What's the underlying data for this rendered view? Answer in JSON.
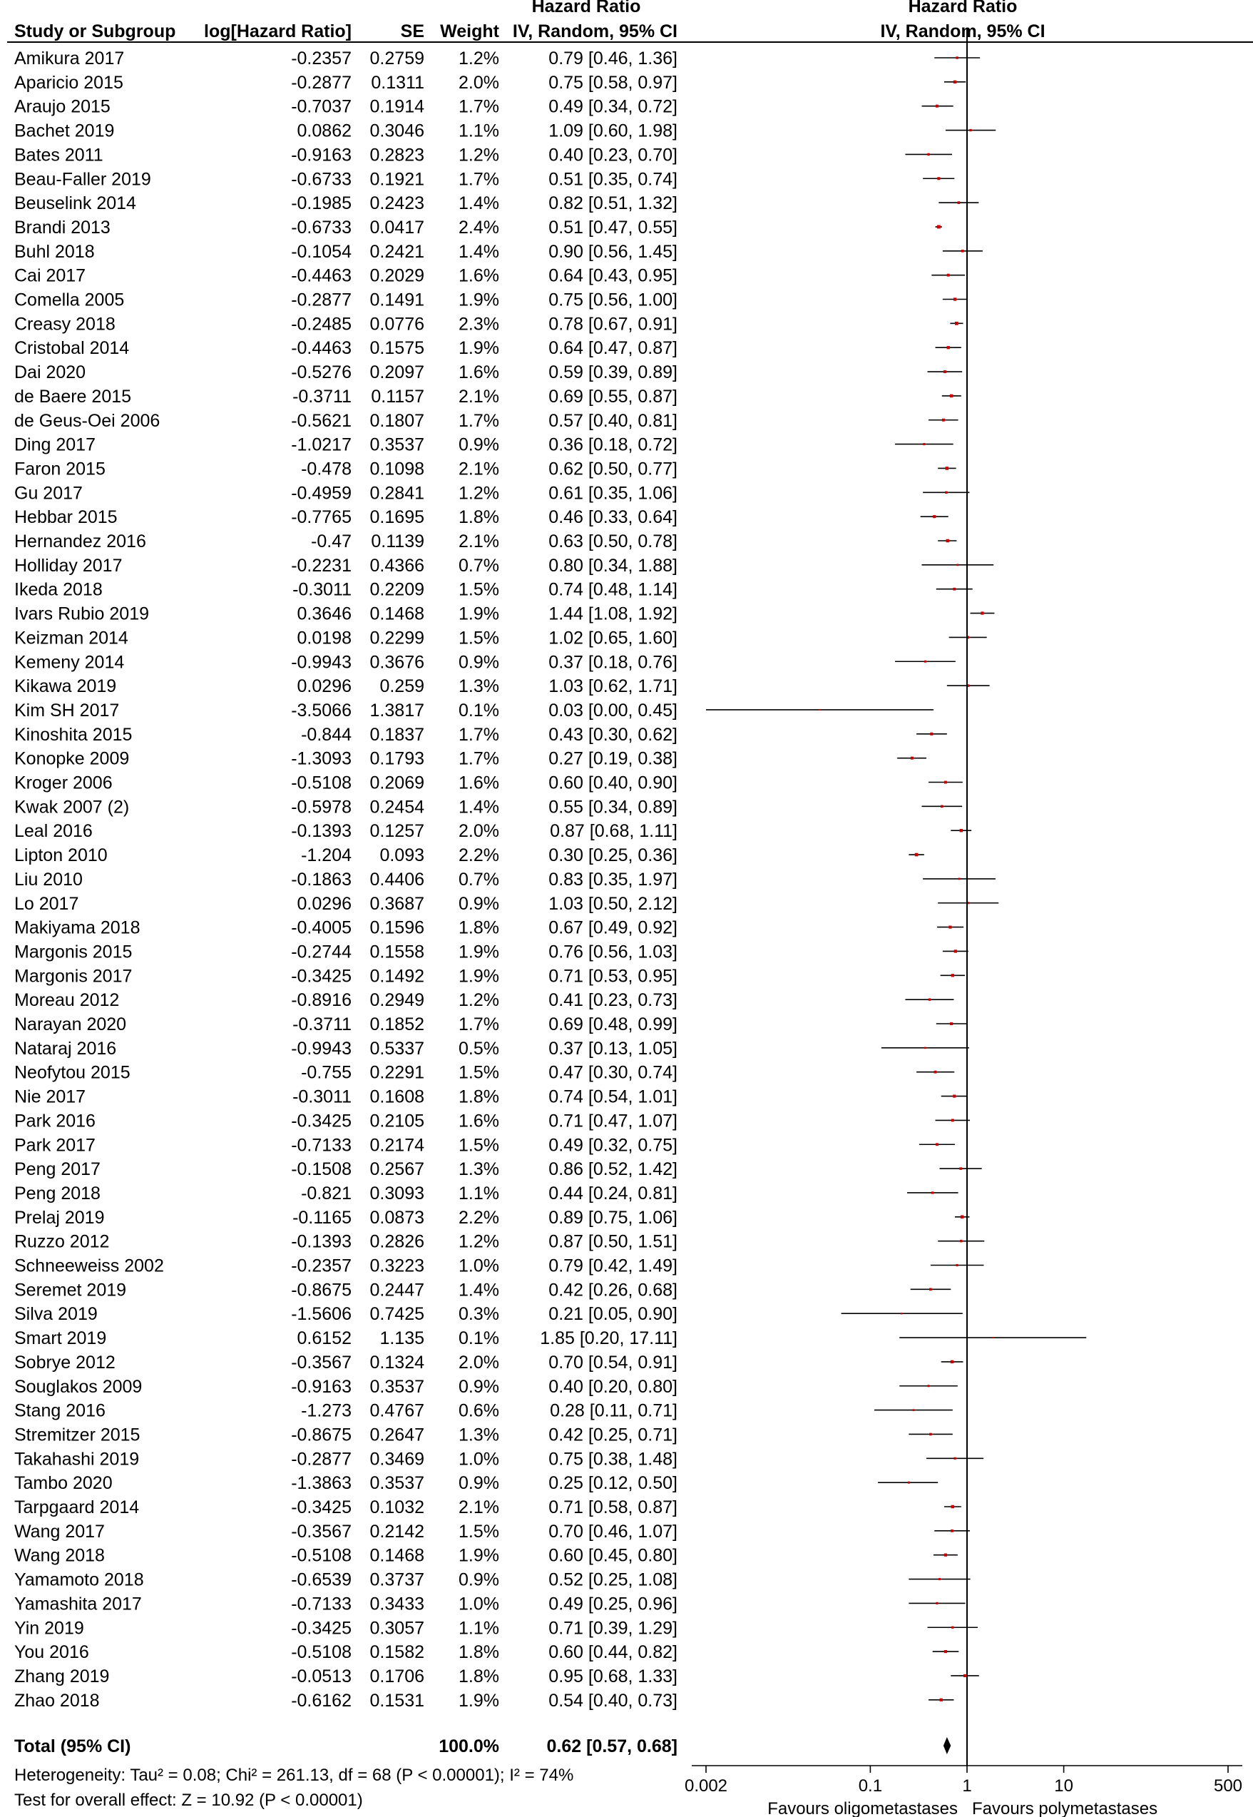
{
  "chart_data": {
    "type": "forest",
    "headers": {
      "study": "Study or Subgroup",
      "loghr": "log[Hazard Ratio]",
      "se": "SE",
      "weight": "Weight",
      "ci_title": "Hazard Ratio",
      "ci_method": "IV, Random, 95% CI",
      "plot_title": "Hazard Ratio",
      "plot_method": "IV, Random, 95% CI"
    },
    "studies": [
      {
        "name": "Amikura 2017",
        "loghr": "-0.2357",
        "se": "0.2759",
        "weight": "1.2%",
        "ci_text": "0.79 [0.46, 1.36]",
        "hr": 0.79,
        "lo": 0.46,
        "hi": 1.36
      },
      {
        "name": "Aparicio 2015",
        "loghr": "-0.2877",
        "se": "0.1311",
        "weight": "2.0%",
        "ci_text": "0.75 [0.58, 0.97]",
        "hr": 0.75,
        "lo": 0.58,
        "hi": 0.97
      },
      {
        "name": "Araujo 2015",
        "loghr": "-0.7037",
        "se": "0.1914",
        "weight": "1.7%",
        "ci_text": "0.49 [0.34, 0.72]",
        "hr": 0.49,
        "lo": 0.34,
        "hi": 0.72
      },
      {
        "name": "Bachet 2019",
        "loghr": "0.0862",
        "se": "0.3046",
        "weight": "1.1%",
        "ci_text": "1.09 [0.60, 1.98]",
        "hr": 1.09,
        "lo": 0.6,
        "hi": 1.98
      },
      {
        "name": "Bates 2011",
        "loghr": "-0.9163",
        "se": "0.2823",
        "weight": "1.2%",
        "ci_text": "0.40 [0.23, 0.70]",
        "hr": 0.4,
        "lo": 0.23,
        "hi": 0.7
      },
      {
        "name": "Beau-Faller 2019",
        "loghr": "-0.6733",
        "se": "0.1921",
        "weight": "1.7%",
        "ci_text": "0.51 [0.35, 0.74]",
        "hr": 0.51,
        "lo": 0.35,
        "hi": 0.74
      },
      {
        "name": "Beuselink 2014",
        "loghr": "-0.1985",
        "se": "0.2423",
        "weight": "1.4%",
        "ci_text": "0.82 [0.51, 1.32]",
        "hr": 0.82,
        "lo": 0.51,
        "hi": 1.32
      },
      {
        "name": "Brandi 2013",
        "loghr": "-0.6733",
        "se": "0.0417",
        "weight": "2.4%",
        "ci_text": "0.51 [0.47, 0.55]",
        "hr": 0.51,
        "lo": 0.47,
        "hi": 0.55
      },
      {
        "name": "Buhl 2018",
        "loghr": "-0.1054",
        "se": "0.2421",
        "weight": "1.4%",
        "ci_text": "0.90 [0.56, 1.45]",
        "hr": 0.9,
        "lo": 0.56,
        "hi": 1.45
      },
      {
        "name": "Cai 2017",
        "loghr": "-0.4463",
        "se": "0.2029",
        "weight": "1.6%",
        "ci_text": "0.64 [0.43, 0.95]",
        "hr": 0.64,
        "lo": 0.43,
        "hi": 0.95
      },
      {
        "name": "Comella 2005",
        "loghr": "-0.2877",
        "se": "0.1491",
        "weight": "1.9%",
        "ci_text": "0.75 [0.56, 1.00]",
        "hr": 0.75,
        "lo": 0.56,
        "hi": 1.0
      },
      {
        "name": "Creasy 2018",
        "loghr": "-0.2485",
        "se": "0.0776",
        "weight": "2.3%",
        "ci_text": "0.78 [0.67, 0.91]",
        "hr": 0.78,
        "lo": 0.67,
        "hi": 0.91
      },
      {
        "name": "Cristobal 2014",
        "loghr": "-0.4463",
        "se": "0.1575",
        "weight": "1.9%",
        "ci_text": "0.64 [0.47, 0.87]",
        "hr": 0.64,
        "lo": 0.47,
        "hi": 0.87
      },
      {
        "name": "Dai 2020",
        "loghr": "-0.5276",
        "se": "0.2097",
        "weight": "1.6%",
        "ci_text": "0.59 [0.39, 0.89]",
        "hr": 0.59,
        "lo": 0.39,
        "hi": 0.89
      },
      {
        "name": "de Baere 2015",
        "loghr": "-0.3711",
        "se": "0.1157",
        "weight": "2.1%",
        "ci_text": "0.69 [0.55, 0.87]",
        "hr": 0.69,
        "lo": 0.55,
        "hi": 0.87
      },
      {
        "name": "de Geus-Oei 2006",
        "loghr": "-0.5621",
        "se": "0.1807",
        "weight": "1.7%",
        "ci_text": "0.57 [0.40, 0.81]",
        "hr": 0.57,
        "lo": 0.4,
        "hi": 0.81
      },
      {
        "name": "Ding 2017",
        "loghr": "-1.0217",
        "se": "0.3537",
        "weight": "0.9%",
        "ci_text": "0.36 [0.18, 0.72]",
        "hr": 0.36,
        "lo": 0.18,
        "hi": 0.72
      },
      {
        "name": "Faron 2015",
        "loghr": "-0.478",
        "se": "0.1098",
        "weight": "2.1%",
        "ci_text": "0.62 [0.50, 0.77]",
        "hr": 0.62,
        "lo": 0.5,
        "hi": 0.77
      },
      {
        "name": "Gu 2017",
        "loghr": "-0.4959",
        "se": "0.2841",
        "weight": "1.2%",
        "ci_text": "0.61 [0.35, 1.06]",
        "hr": 0.61,
        "lo": 0.35,
        "hi": 1.06
      },
      {
        "name": "Hebbar 2015",
        "loghr": "-0.7765",
        "se": "0.1695",
        "weight": "1.8%",
        "ci_text": "0.46 [0.33, 0.64]",
        "hr": 0.46,
        "lo": 0.33,
        "hi": 0.64
      },
      {
        "name": "Hernandez 2016",
        "loghr": "-0.47",
        "se": "0.1139",
        "weight": "2.1%",
        "ci_text": "0.63 [0.50, 0.78]",
        "hr": 0.63,
        "lo": 0.5,
        "hi": 0.78
      },
      {
        "name": "Holliday 2017",
        "loghr": "-0.2231",
        "se": "0.4366",
        "weight": "0.7%",
        "ci_text": "0.80 [0.34, 1.88]",
        "hr": 0.8,
        "lo": 0.34,
        "hi": 1.88
      },
      {
        "name": "Ikeda 2018",
        "loghr": "-0.3011",
        "se": "0.2209",
        "weight": "1.5%",
        "ci_text": "0.74 [0.48, 1.14]",
        "hr": 0.74,
        "lo": 0.48,
        "hi": 1.14
      },
      {
        "name": "Ivars Rubio 2019",
        "loghr": "0.3646",
        "se": "0.1468",
        "weight": "1.9%",
        "ci_text": "1.44 [1.08, 1.92]",
        "hr": 1.44,
        "lo": 1.08,
        "hi": 1.92
      },
      {
        "name": "Keizman 2014",
        "loghr": "0.0198",
        "se": "0.2299",
        "weight": "1.5%",
        "ci_text": "1.02 [0.65, 1.60]",
        "hr": 1.02,
        "lo": 0.65,
        "hi": 1.6
      },
      {
        "name": "Kemeny 2014",
        "loghr": "-0.9943",
        "se": "0.3676",
        "weight": "0.9%",
        "ci_text": "0.37 [0.18, 0.76]",
        "hr": 0.37,
        "lo": 0.18,
        "hi": 0.76
      },
      {
        "name": "Kikawa 2019",
        "loghr": "0.0296",
        "se": "0.259",
        "weight": "1.3%",
        "ci_text": "1.03 [0.62, 1.71]",
        "hr": 1.03,
        "lo": 0.62,
        "hi": 1.71
      },
      {
        "name": "Kim SH 2017",
        "loghr": "-3.5066",
        "se": "1.3817",
        "weight": "0.1%",
        "ci_text": "0.03 [0.00, 0.45]",
        "hr": 0.03,
        "lo": 0.002,
        "hi": 0.45
      },
      {
        "name": "Kinoshita 2015",
        "loghr": "-0.844",
        "se": "0.1837",
        "weight": "1.7%",
        "ci_text": "0.43 [0.30, 0.62]",
        "hr": 0.43,
        "lo": 0.3,
        "hi": 0.62
      },
      {
        "name": "Konopke 2009",
        "loghr": "-1.3093",
        "se": "0.1793",
        "weight": "1.7%",
        "ci_text": "0.27 [0.19, 0.38]",
        "hr": 0.27,
        "lo": 0.19,
        "hi": 0.38
      },
      {
        "name": "Kroger 2006",
        "loghr": "-0.5108",
        "se": "0.2069",
        "weight": "1.6%",
        "ci_text": "0.60 [0.40, 0.90]",
        "hr": 0.6,
        "lo": 0.4,
        "hi": 0.9
      },
      {
        "name": "Kwak 2007 (2)",
        "loghr": "-0.5978",
        "se": "0.2454",
        "weight": "1.4%",
        "ci_text": "0.55 [0.34, 0.89]",
        "hr": 0.55,
        "lo": 0.34,
        "hi": 0.89
      },
      {
        "name": "Leal 2016",
        "loghr": "-0.1393",
        "se": "0.1257",
        "weight": "2.0%",
        "ci_text": "0.87 [0.68, 1.11]",
        "hr": 0.87,
        "lo": 0.68,
        "hi": 1.11
      },
      {
        "name": "Lipton 2010",
        "loghr": "-1.204",
        "se": "0.093",
        "weight": "2.2%",
        "ci_text": "0.30 [0.25, 0.36]",
        "hr": 0.3,
        "lo": 0.25,
        "hi": 0.36
      },
      {
        "name": "Liu 2010",
        "loghr": "-0.1863",
        "se": "0.4406",
        "weight": "0.7%",
        "ci_text": "0.83 [0.35, 1.97]",
        "hr": 0.83,
        "lo": 0.35,
        "hi": 1.97
      },
      {
        "name": "Lo 2017",
        "loghr": "0.0296",
        "se": "0.3687",
        "weight": "0.9%",
        "ci_text": "1.03 [0.50, 2.12]",
        "hr": 1.03,
        "lo": 0.5,
        "hi": 2.12
      },
      {
        "name": "Makiyama 2018",
        "loghr": "-0.4005",
        "se": "0.1596",
        "weight": "1.8%",
        "ci_text": "0.67 [0.49, 0.92]",
        "hr": 0.67,
        "lo": 0.49,
        "hi": 0.92
      },
      {
        "name": "Margonis 2015",
        "loghr": "-0.2744",
        "se": "0.1558",
        "weight": "1.9%",
        "ci_text": "0.76 [0.56, 1.03]",
        "hr": 0.76,
        "lo": 0.56,
        "hi": 1.03
      },
      {
        "name": "Margonis 2017",
        "loghr": "-0.3425",
        "se": "0.1492",
        "weight": "1.9%",
        "ci_text": "0.71 [0.53, 0.95]",
        "hr": 0.71,
        "lo": 0.53,
        "hi": 0.95
      },
      {
        "name": "Moreau 2012",
        "loghr": "-0.8916",
        "se": "0.2949",
        "weight": "1.2%",
        "ci_text": "0.41 [0.23, 0.73]",
        "hr": 0.41,
        "lo": 0.23,
        "hi": 0.73
      },
      {
        "name": "Narayan 2020",
        "loghr": "-0.3711",
        "se": "0.1852",
        "weight": "1.7%",
        "ci_text": "0.69 [0.48, 0.99]",
        "hr": 0.69,
        "lo": 0.48,
        "hi": 0.99
      },
      {
        "name": "Nataraj 2016",
        "loghr": "-0.9943",
        "se": "0.5337",
        "weight": "0.5%",
        "ci_text": "0.37 [0.13, 1.05]",
        "hr": 0.37,
        "lo": 0.13,
        "hi": 1.05
      },
      {
        "name": "Neofytou 2015",
        "loghr": "-0.755",
        "se": "0.2291",
        "weight": "1.5%",
        "ci_text": "0.47 [0.30, 0.74]",
        "hr": 0.47,
        "lo": 0.3,
        "hi": 0.74
      },
      {
        "name": "Nie 2017",
        "loghr": "-0.3011",
        "se": "0.1608",
        "weight": "1.8%",
        "ci_text": "0.74 [0.54, 1.01]",
        "hr": 0.74,
        "lo": 0.54,
        "hi": 1.01
      },
      {
        "name": "Park 2016",
        "loghr": "-0.3425",
        "se": "0.2105",
        "weight": "1.6%",
        "ci_text": "0.71 [0.47, 1.07]",
        "hr": 0.71,
        "lo": 0.47,
        "hi": 1.07
      },
      {
        "name": "Park 2017",
        "loghr": "-0.7133",
        "se": "0.2174",
        "weight": "1.5%",
        "ci_text": "0.49 [0.32, 0.75]",
        "hr": 0.49,
        "lo": 0.32,
        "hi": 0.75
      },
      {
        "name": "Peng 2017",
        "loghr": "-0.1508",
        "se": "0.2567",
        "weight": "1.3%",
        "ci_text": "0.86 [0.52, 1.42]",
        "hr": 0.86,
        "lo": 0.52,
        "hi": 1.42
      },
      {
        "name": "Peng 2018",
        "loghr": "-0.821",
        "se": "0.3093",
        "weight": "1.1%",
        "ci_text": "0.44 [0.24, 0.81]",
        "hr": 0.44,
        "lo": 0.24,
        "hi": 0.81
      },
      {
        "name": "Prelaj 2019",
        "loghr": "-0.1165",
        "se": "0.0873",
        "weight": "2.2%",
        "ci_text": "0.89 [0.75, 1.06]",
        "hr": 0.89,
        "lo": 0.75,
        "hi": 1.06
      },
      {
        "name": "Ruzzo 2012",
        "loghr": "-0.1393",
        "se": "0.2826",
        "weight": "1.2%",
        "ci_text": "0.87 [0.50, 1.51]",
        "hr": 0.87,
        "lo": 0.5,
        "hi": 1.51
      },
      {
        "name": "Schneeweiss 2002",
        "loghr": "-0.2357",
        "se": "0.3223",
        "weight": "1.0%",
        "ci_text": "0.79 [0.42, 1.49]",
        "hr": 0.79,
        "lo": 0.42,
        "hi": 1.49
      },
      {
        "name": "Seremet 2019",
        "loghr": "-0.8675",
        "se": "0.2447",
        "weight": "1.4%",
        "ci_text": "0.42 [0.26, 0.68]",
        "hr": 0.42,
        "lo": 0.26,
        "hi": 0.68
      },
      {
        "name": "Silva 2019",
        "loghr": "-1.5606",
        "se": "0.7425",
        "weight": "0.3%",
        "ci_text": "0.21 [0.05, 0.90]",
        "hr": 0.21,
        "lo": 0.05,
        "hi": 0.9
      },
      {
        "name": "Smart 2019",
        "loghr": "0.6152",
        "se": "1.135",
        "weight": "0.1%",
        "ci_text": "1.85 [0.20, 17.11]",
        "hr": 1.85,
        "lo": 0.2,
        "hi": 17.11
      },
      {
        "name": "Sobrye 2012",
        "loghr": "-0.3567",
        "se": "0.1324",
        "weight": "2.0%",
        "ci_text": "0.70 [0.54, 0.91]",
        "hr": 0.7,
        "lo": 0.54,
        "hi": 0.91
      },
      {
        "name": "Souglakos 2009",
        "loghr": "-0.9163",
        "se": "0.3537",
        "weight": "0.9%",
        "ci_text": "0.40 [0.20, 0.80]",
        "hr": 0.4,
        "lo": 0.2,
        "hi": 0.8
      },
      {
        "name": "Stang 2016",
        "loghr": "-1.273",
        "se": "0.4767",
        "weight": "0.6%",
        "ci_text": "0.28 [0.11, 0.71]",
        "hr": 0.28,
        "lo": 0.11,
        "hi": 0.71
      },
      {
        "name": "Stremitzer 2015",
        "loghr": "-0.8675",
        "se": "0.2647",
        "weight": "1.3%",
        "ci_text": "0.42 [0.25, 0.71]",
        "hr": 0.42,
        "lo": 0.25,
        "hi": 0.71
      },
      {
        "name": "Takahashi 2019",
        "loghr": "-0.2877",
        "se": "0.3469",
        "weight": "1.0%",
        "ci_text": "0.75 [0.38, 1.48]",
        "hr": 0.75,
        "lo": 0.38,
        "hi": 1.48
      },
      {
        "name": "Tambo 2020",
        "loghr": "-1.3863",
        "se": "0.3537",
        "weight": "0.9%",
        "ci_text": "0.25 [0.12, 0.50]",
        "hr": 0.25,
        "lo": 0.12,
        "hi": 0.5
      },
      {
        "name": "Tarpgaard 2014",
        "loghr": "-0.3425",
        "se": "0.1032",
        "weight": "2.1%",
        "ci_text": "0.71 [0.58, 0.87]",
        "hr": 0.71,
        "lo": 0.58,
        "hi": 0.87
      },
      {
        "name": "Wang 2017",
        "loghr": "-0.3567",
        "se": "0.2142",
        "weight": "1.5%",
        "ci_text": "0.70 [0.46, 1.07]",
        "hr": 0.7,
        "lo": 0.46,
        "hi": 1.07
      },
      {
        "name": "Wang 2018",
        "loghr": "-0.5108",
        "se": "0.1468",
        "weight": "1.9%",
        "ci_text": "0.60 [0.45, 0.80]",
        "hr": 0.6,
        "lo": 0.45,
        "hi": 0.8
      },
      {
        "name": "Yamamoto 2018",
        "loghr": "-0.6539",
        "se": "0.3737",
        "weight": "0.9%",
        "ci_text": "0.52 [0.25, 1.08]",
        "hr": 0.52,
        "lo": 0.25,
        "hi": 1.08
      },
      {
        "name": "Yamashita 2017",
        "loghr": "-0.7133",
        "se": "0.3433",
        "weight": "1.0%",
        "ci_text": "0.49 [0.25, 0.96]",
        "hr": 0.49,
        "lo": 0.25,
        "hi": 0.96
      },
      {
        "name": "Yin 2019",
        "loghr": "-0.3425",
        "se": "0.3057",
        "weight": "1.1%",
        "ci_text": "0.71 [0.39, 1.29]",
        "hr": 0.71,
        "lo": 0.39,
        "hi": 1.29
      },
      {
        "name": "You 2016",
        "loghr": "-0.5108",
        "se": "0.1582",
        "weight": "1.8%",
        "ci_text": "0.60 [0.44, 0.82]",
        "hr": 0.6,
        "lo": 0.44,
        "hi": 0.82
      },
      {
        "name": "Zhang 2019",
        "loghr": "-0.0513",
        "se": "0.1706",
        "weight": "1.8%",
        "ci_text": "0.95 [0.68, 1.33]",
        "hr": 0.95,
        "lo": 0.68,
        "hi": 1.33
      },
      {
        "name": "Zhao 2018",
        "loghr": "-0.6162",
        "se": "0.1531",
        "weight": "1.9%",
        "ci_text": "0.54 [0.40, 0.73]",
        "hr": 0.54,
        "lo": 0.4,
        "hi": 0.73
      }
    ],
    "total": {
      "label": "Total (95% CI)",
      "weight": "100.0%",
      "ci_text": "0.62 [0.57, 0.68]",
      "hr": 0.62,
      "lo": 0.57,
      "hi": 0.68
    },
    "heterogeneity": "Heterogeneity: Tau² = 0.08; Chi² = 261.13, df = 68 (P < 0.00001); I² = 74%",
    "overall_effect": "Test for overall effect: Z = 10.92 (P < 0.00001)",
    "axis": {
      "scale": "log",
      "ticks": [
        0.002,
        0.1,
        1,
        10,
        500
      ],
      "tick_labels": [
        "0.002",
        "0.1",
        "1",
        "10",
        "500"
      ],
      "range": [
        0.002,
        500
      ],
      "reference_line": 1
    },
    "favours_left": "Favours oligometastases",
    "favours_right": "Favours polymetastases",
    "colors": {
      "point": "#cc0000",
      "line": "#000000",
      "text": "#000000"
    }
  }
}
